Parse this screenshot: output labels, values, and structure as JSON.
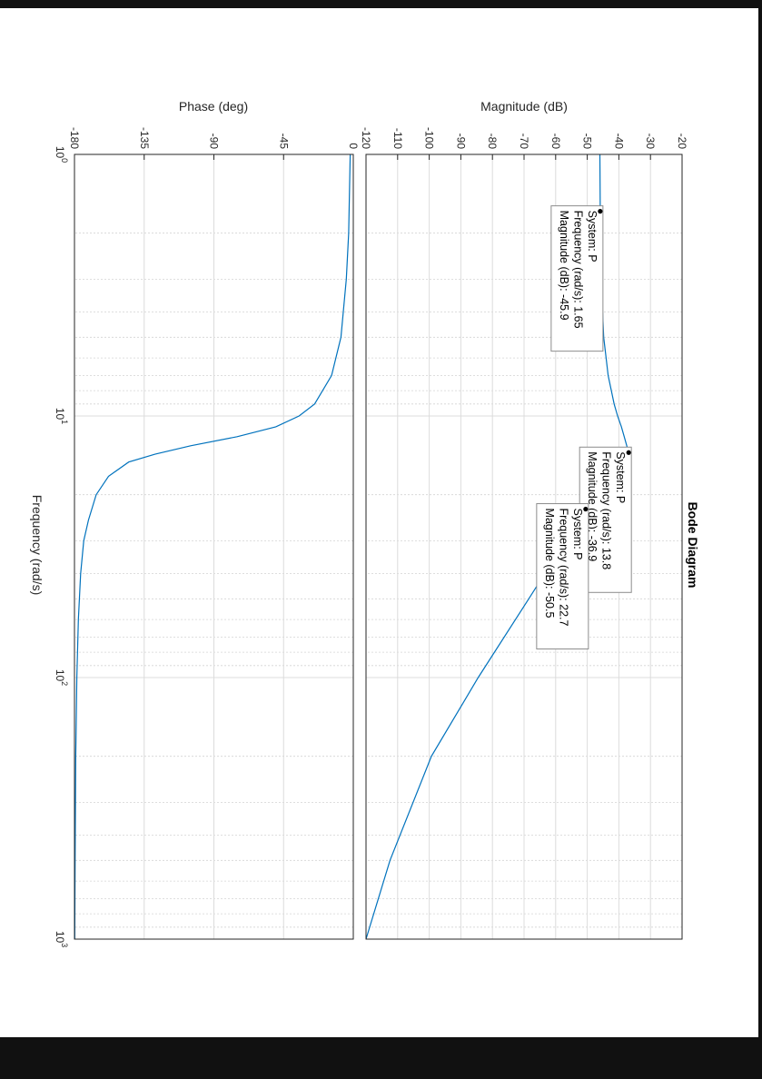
{
  "chart_data": {
    "type": "line",
    "title": "Bode Diagram",
    "xlabel": "Frequency  (rad/s)",
    "xscale": "log",
    "xlim": [
      1,
      1000
    ],
    "x_ticks": [
      {
        "base": "10",
        "exp": "0"
      },
      {
        "base": "10",
        "exp": "1"
      },
      {
        "base": "10",
        "exp": "2"
      },
      {
        "base": "10",
        "exp": "3"
      }
    ],
    "grid": true,
    "orientation": "rotated-90-clockwise",
    "magnitude": {
      "ylabel": "Magnitude (dB)",
      "ylim": [
        -120,
        -20
      ],
      "yticks": [
        "-120",
        "-110",
        "-100",
        "-90",
        "-80",
        "-70",
        "-60",
        "-50",
        "-40",
        "-30",
        "-20"
      ],
      "series": [
        {
          "x": [
            1,
            1.65,
            3,
            5,
            7,
            9,
            10,
            11,
            12,
            13.8,
            16,
            19,
            22.7,
            30,
            50,
            100,
            200,
            500,
            1000
          ],
          "y": [
            -46.0,
            -45.9,
            -45.6,
            -44.8,
            -43.4,
            -41.5,
            -40.4,
            -39.2,
            -38.3,
            -36.9,
            -40.8,
            -45.5,
            -50.5,
            -56.8,
            -68.5,
            -84.5,
            -99.3,
            -112.4,
            -120.0
          ]
        }
      ]
    },
    "phase": {
      "ylabel": "Phase (deg)",
      "ylim": [
        -180,
        0
      ],
      "yticks": [
        "-180",
        "-135",
        "-90",
        "-45",
        "0"
      ],
      "series": [
        {
          "x": [
            1,
            2,
            3,
            5,
            7,
            9,
            10,
            11,
            12,
            13,
            14,
            15,
            17,
            20,
            25,
            30,
            40,
            60,
            100,
            200,
            500,
            1000
          ],
          "y": [
            -2,
            -3,
            -4.5,
            -8,
            -14,
            -25,
            -35,
            -50,
            -75,
            -105,
            -128,
            -145,
            -158,
            -166,
            -171,
            -174,
            -176,
            -177.5,
            -178.5,
            -179.2,
            -179.6,
            -179.8
          ]
        }
      ]
    },
    "datatips": [
      {
        "lines": [
          "System: P",
          "Frequency (rad/s): 1.65",
          "Magnitude (dB): -45.9"
        ],
        "x": 1.65,
        "y": -45.9
      },
      {
        "lines": [
          "System: P",
          "Frequency (rad/s): 13.8",
          "Magnitude (dB): -36.9"
        ],
        "x": 13.8,
        "y": -36.9
      },
      {
        "lines": [
          "System: P",
          "Frequency (rad/s): 22.7",
          "Magnitude (dB): -50.5"
        ],
        "x": 22.7,
        "y": -50.5
      }
    ]
  }
}
